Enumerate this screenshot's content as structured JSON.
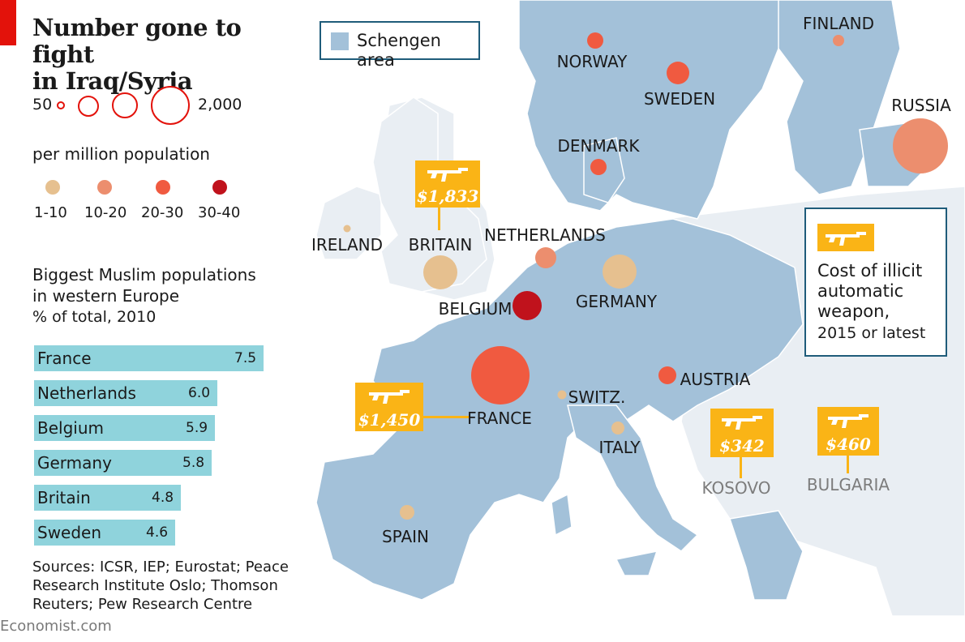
{
  "title": {
    "line1": "Number gone to fight",
    "line2": "in Iraq/Syria"
  },
  "size_legend": {
    "min_label": "50",
    "max_label": "2,000",
    "stroke_color": "#e3120b"
  },
  "rate_legend": {
    "title": "per million population",
    "classes": [
      {
        "label": "1-10",
        "color": "#e6c08f"
      },
      {
        "label": "10-20",
        "color": "#ec8e6e"
      },
      {
        "label": "20-30",
        "color": "#f05a40"
      },
      {
        "label": "30-40",
        "color": "#c0121c"
      }
    ]
  },
  "bar_chart": {
    "title_line1": "Biggest Muslim populations",
    "title_line2": "in western Europe",
    "subtitle": "% of total, 2010",
    "bar_color": "#8fd3dc",
    "bars": [
      {
        "name": "France",
        "value": "7.5"
      },
      {
        "name": "Netherlands",
        "value": "6.0"
      },
      {
        "name": "Belgium",
        "value": "5.9"
      },
      {
        "name": "Germany",
        "value": "5.8"
      },
      {
        "name": "Britain",
        "value": "4.8"
      },
      {
        "name": "Sweden",
        "value": "4.6"
      }
    ]
  },
  "sources": "Sources: ICSR, IEP; Eurostat; Peace Research Institute Oslo; Thomson Reuters; Pew Research Centre",
  "footer": "Economist.com",
  "map_legend": {
    "schengen_label": "Schengen area",
    "schengen_color": "#a3c1d9"
  },
  "weapon_key": {
    "line1": "Cost of illicit",
    "line2": "automatic",
    "line3": "weapon,",
    "line4": "2015 or latest",
    "box_color": "#fab416"
  },
  "countries": {
    "finland": "FINLAND",
    "norway": "NORWAY",
    "sweden": "SWEDEN",
    "russia": "RUSSIA",
    "denmark": "DENMARK",
    "ireland": "IRELAND",
    "britain": "BRITAIN",
    "netherlands": "NETHERLANDS",
    "belgium": "BELGIUM",
    "germany": "GERMANY",
    "france": "FRANCE",
    "switzerland": "SWITZ.",
    "austria": "AUSTRIA",
    "italy": "ITALY",
    "kosovo": "KOSOVO",
    "bulgaria": "BULGARIA",
    "spain": "SPAIN"
  },
  "weapon_prices": {
    "britain": "$1,833",
    "france": "$1,450",
    "kosovo": "$342",
    "bulgaria": "$460"
  },
  "colors": {
    "land": "#a3c1d9",
    "non_schengen": "#e9eef3",
    "sea": "#ffffff",
    "accent_red": "#e3120b"
  }
}
